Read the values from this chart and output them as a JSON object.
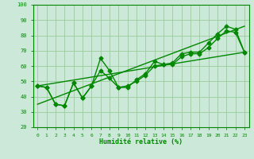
{
  "xlabel": "Humidité relative (%)",
  "bg_color": "#cce8d8",
  "grid_color": "#99cc99",
  "line_color": "#008800",
  "marker": "D",
  "markersize": 2.5,
  "linewidth": 1.0,
  "xlim": [
    -0.5,
    23.5
  ],
  "ylim": [
    20,
    100
  ],
  "yticks": [
    20,
    30,
    40,
    50,
    60,
    70,
    80,
    90,
    100
  ],
  "xticks": [
    0,
    1,
    2,
    3,
    4,
    5,
    6,
    7,
    8,
    9,
    10,
    11,
    12,
    13,
    14,
    15,
    16,
    17,
    18,
    19,
    20,
    21,
    22,
    23
  ],
  "line1_x": [
    0,
    1,
    2,
    3,
    4,
    5,
    6,
    7,
    8,
    9,
    10,
    11,
    12,
    13,
    14,
    15,
    16,
    17,
    18,
    19,
    20,
    21,
    22,
    23
  ],
  "line1_y": [
    47,
    46,
    35,
    34,
    49,
    39,
    47,
    65,
    57,
    46,
    46,
    51,
    55,
    63,
    61,
    62,
    68,
    69,
    69,
    75,
    81,
    86,
    84,
    69
  ],
  "line2_x": [
    0,
    1,
    2,
    3,
    4,
    5,
    6,
    7,
    8,
    9,
    10,
    11,
    12,
    13,
    14,
    15,
    16,
    17,
    18,
    19,
    20,
    21,
    22,
    23
  ],
  "line2_y": [
    47,
    46,
    35,
    34,
    49,
    39,
    47,
    57,
    52,
    46,
    47,
    50,
    54,
    60,
    61,
    61,
    66,
    68,
    68,
    72,
    78,
    83,
    82,
    69
  ],
  "line3_x": [
    0,
    23
  ],
  "line3_y": [
    47,
    69
  ],
  "line4_x": [
    0,
    23
  ],
  "line4_y": [
    35,
    86
  ]
}
